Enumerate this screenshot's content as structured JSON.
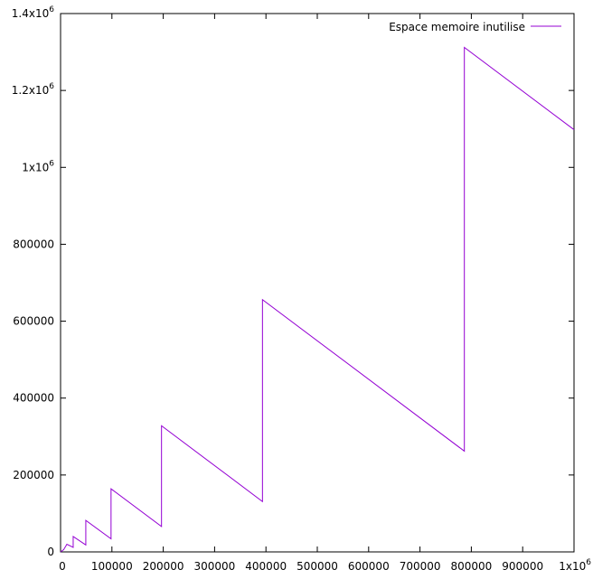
{
  "chart_data": {
    "type": "line",
    "title": "",
    "xlabel": "",
    "ylabel": "",
    "xlim": [
      0,
      1000000
    ],
    "ylim": [
      0,
      1400000
    ],
    "grid": false,
    "legend_position": "top-right",
    "x_ticks": [
      {
        "value": 0,
        "label": "0"
      },
      {
        "value": 100000,
        "label": "100000"
      },
      {
        "value": 200000,
        "label": "200000"
      },
      {
        "value": 300000,
        "label": "300000"
      },
      {
        "value": 400000,
        "label": "400000"
      },
      {
        "value": 500000,
        "label": "500000"
      },
      {
        "value": 600000,
        "label": "600000"
      },
      {
        "value": 700000,
        "label": "700000"
      },
      {
        "value": 800000,
        "label": "800000"
      },
      {
        "value": 900000,
        "label": "900000"
      },
      {
        "value": 1000000,
        "label": "1x10",
        "sup": "6"
      }
    ],
    "y_ticks": [
      {
        "value": 0,
        "label": "0"
      },
      {
        "value": 200000,
        "label": "200000"
      },
      {
        "value": 400000,
        "label": "400000"
      },
      {
        "value": 600000,
        "label": "600000"
      },
      {
        "value": 800000,
        "label": "800000"
      },
      {
        "value": 1000000,
        "label": "1x10",
        "sup": "6"
      },
      {
        "value": 1200000,
        "label": "1.2x10",
        "sup": "6"
      },
      {
        "value": 1400000,
        "label": "1.4x10",
        "sup": "6"
      }
    ],
    "series": [
      {
        "name": "Espace memoire inutilise",
        "color": "#9400d3",
        "x": [
          0,
          1536,
          1536,
          3072,
          3072,
          6144,
          6144,
          12288,
          12288,
          24576,
          24576,
          49152,
          49152,
          98304,
          98304,
          196608,
          196608,
          393216,
          393216,
          786432,
          786432,
          1000000
        ],
        "y": [
          0,
          1500,
          1500,
          3000,
          3000,
          6000,
          6000,
          20000,
          20000,
          12000,
          40000,
          18000,
          82000,
          34000,
          164000,
          66000,
          328000,
          131000,
          656000,
          262000,
          1312000,
          1098000
        ]
      }
    ]
  }
}
